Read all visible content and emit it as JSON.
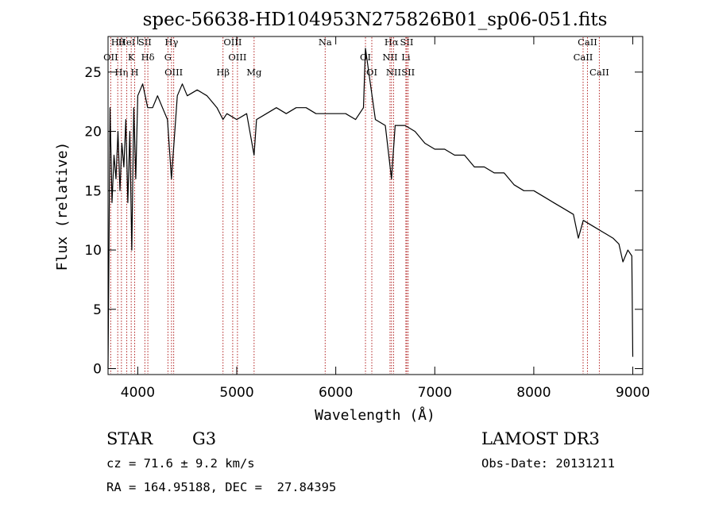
{
  "chart_data": {
    "type": "line",
    "title": "spec-56638-HD104953N275826B01_sp06-051.fits",
    "xlabel": "Wavelength (Å)",
    "ylabel": "Flux (relative)",
    "xlim": [
      3700,
      9100
    ],
    "ylim": [
      -0.5,
      28
    ],
    "xticks": [
      4000,
      5000,
      6000,
      7000,
      8000,
      9000
    ],
    "yticks": [
      0,
      5,
      10,
      15,
      20,
      25
    ],
    "series": [
      {
        "name": "spectrum",
        "x": [
          3700,
          3720,
          3740,
          3760,
          3780,
          3800,
          3820,
          3840,
          3860,
          3880,
          3900,
          3920,
          3940,
          3960,
          3980,
          4000,
          4050,
          4100,
          4150,
          4200,
          4250,
          4300,
          4340,
          4400,
          4450,
          4500,
          4600,
          4700,
          4800,
          4861,
          4900,
          5000,
          5100,
          5175,
          5200,
          5300,
          5400,
          5500,
          5600,
          5700,
          5800,
          5900,
          6000,
          6100,
          6200,
          6280,
          6300,
          6400,
          6500,
          6563,
          6600,
          6700,
          6800,
          6900,
          7000,
          7100,
          7200,
          7300,
          7400,
          7500,
          7600,
          7700,
          7800,
          7900,
          8000,
          8100,
          8200,
          8300,
          8400,
          8450,
          8500,
          8600,
          8700,
          8800,
          8860,
          8900,
          8950,
          8990,
          9000
        ],
        "y": [
          0,
          22,
          14,
          18,
          16,
          20,
          15,
          19,
          17,
          21,
          14,
          20,
          10,
          22,
          16,
          23,
          24,
          22,
          22,
          23,
          22,
          21,
          16,
          23,
          24,
          23,
          23.5,
          23,
          22,
          21,
          21.5,
          21,
          21.5,
          18,
          21,
          21.5,
          22,
          21.5,
          22,
          22,
          21.5,
          21.5,
          21.5,
          21.5,
          21,
          22,
          27,
          21,
          20.5,
          16,
          20.5,
          20.5,
          20,
          19,
          18.5,
          18.5,
          18,
          18,
          17,
          17,
          16.5,
          16.5,
          15.5,
          15,
          15,
          14.5,
          14,
          13.5,
          13,
          11,
          12.5,
          12,
          11.5,
          11,
          10.5,
          9,
          10,
          9.5,
          1
        ]
      }
    ],
    "line_markers": [
      {
        "label": "Hθ",
        "x": 3798
      },
      {
        "label": "OII",
        "x": 3727
      },
      {
        "label": "Hη",
        "x": 3835
      },
      {
        "label": "HeI",
        "x": 3889
      },
      {
        "label": "K",
        "x": 3934
      },
      {
        "label": "H",
        "x": 3969
      },
      {
        "label": "SII",
        "x": 4072
      },
      {
        "label": "Hδ",
        "x": 4102
      },
      {
        "label": "OIII",
        "x": 4363
      },
      {
        "label": "Hγ",
        "x": 4341
      },
      {
        "label": "G",
        "x": 4305
      },
      {
        "label": "Hβ",
        "x": 4861
      },
      {
        "label": "OIII",
        "x": 4959
      },
      {
        "label": "OIII",
        "x": 5007
      },
      {
        "label": "Mg",
        "x": 5175
      },
      {
        "label": "Na",
        "x": 5893
      },
      {
        "label": "OI",
        "x": 6300
      },
      {
        "label": "OI",
        "x": 6364
      },
      {
        "label": "Hα",
        "x": 6563
      },
      {
        "label": "NII",
        "x": 6548
      },
      {
        "label": "NII",
        "x": 6584
      },
      {
        "label": "SII",
        "x": 6717
      },
      {
        "label": "Li",
        "x": 6708
      },
      {
        "label": "SII",
        "x": 6731
      },
      {
        "label": "CaII",
        "x": 8542
      },
      {
        "label": "CaII",
        "x": 8498
      },
      {
        "label": "CaII",
        "x": 8662
      }
    ]
  },
  "info": {
    "object_class": "STAR",
    "subclass": "G3",
    "survey": "LAMOST DR3",
    "redshift": "cz = 71.6 ± 9.2 km/s",
    "obs_date": "Obs-Date: 20131211",
    "coords": "RA = 164.95188, DEC =  27.84395"
  }
}
